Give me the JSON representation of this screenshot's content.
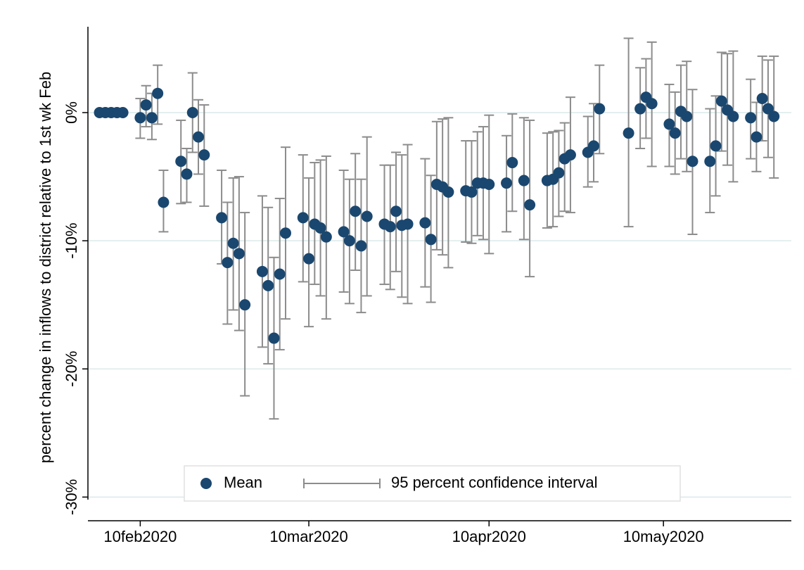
{
  "chart_data": {
    "type": "errorbar-scatter",
    "y_label": "percent change in inflows to district relative to 1st wk Feb",
    "x": [
      "2020-02-03",
      "2020-02-04",
      "2020-02-05",
      "2020-02-06",
      "2020-02-07",
      "2020-02-10",
      "2020-02-11",
      "2020-02-12",
      "2020-02-13",
      "2020-02-14",
      "2020-02-17",
      "2020-02-18",
      "2020-02-19",
      "2020-02-20",
      "2020-02-21",
      "2020-02-24",
      "2020-02-25",
      "2020-02-26",
      "2020-02-27",
      "2020-02-28",
      "2020-03-02",
      "2020-03-03",
      "2020-03-04",
      "2020-03-05",
      "2020-03-06",
      "2020-03-09",
      "2020-03-10",
      "2020-03-11",
      "2020-03-12",
      "2020-03-13",
      "2020-03-16",
      "2020-03-17",
      "2020-03-18",
      "2020-03-19",
      "2020-03-20",
      "2020-03-23",
      "2020-03-24",
      "2020-03-25",
      "2020-03-26",
      "2020-03-27",
      "2020-03-30",
      "2020-03-31",
      "2020-04-01",
      "2020-04-02",
      "2020-04-03",
      "2020-04-06",
      "2020-04-07",
      "2020-04-08",
      "2020-04-09",
      "2020-04-10",
      "2020-04-13",
      "2020-04-14",
      "2020-04-16",
      "2020-04-17",
      "2020-04-20",
      "2020-04-21",
      "2020-04-22",
      "2020-04-23",
      "2020-04-24",
      "2020-04-27",
      "2020-04-28",
      "2020-04-29",
      "2020-05-04",
      "2020-05-06",
      "2020-05-07",
      "2020-05-08",
      "2020-05-11",
      "2020-05-12",
      "2020-05-13",
      "2020-05-14",
      "2020-05-15",
      "2020-05-18",
      "2020-05-19",
      "2020-05-20",
      "2020-05-21",
      "2020-05-22",
      "2020-05-25",
      "2020-05-26",
      "2020-05-27",
      "2020-05-28",
      "2020-05-29"
    ],
    "series": [
      {
        "name": "Mean",
        "color": "#1a476f",
        "values": [
          0,
          0,
          0,
          0,
          0,
          -0.4,
          0.6,
          -0.4,
          1.5,
          -7.0,
          -3.8,
          -4.8,
          0.0,
          -1.9,
          -3.3,
          -8.2,
          -11.7,
          -10.2,
          -11.0,
          -15.0,
          -12.4,
          -13.5,
          -17.6,
          -12.6,
          -9.4,
          -8.2,
          -11.4,
          -8.7,
          -9.0,
          -9.7,
          -9.3,
          -10.0,
          -7.7,
          -10.4,
          -8.1,
          -8.7,
          -8.9,
          -7.7,
          -8.8,
          -8.7,
          -8.6,
          -9.9,
          -5.6,
          -5.8,
          -6.2,
          -6.1,
          -6.2,
          -5.5,
          -5.5,
          -5.6,
          -5.5,
          -3.9,
          -5.3,
          -7.2,
          -5.3,
          -5.2,
          -4.7,
          -3.6,
          -3.3,
          -3.1,
          -2.6,
          0.3,
          -1.6,
          0.3,
          1.2,
          0.7,
          -0.9,
          -1.6,
          0.1,
          -0.3,
          -3.8,
          -3.8,
          -2.6,
          0.9,
          0.2,
          -0.3,
          -0.4,
          -1.9,
          1.1,
          0.3,
          -0.3
        ]
      }
    ],
    "ci": {
      "name": "95 percent confidence interval",
      "color": "#8c8c8c",
      "high": [
        null,
        null,
        null,
        null,
        null,
        1.1,
        2.1,
        1.5,
        3.7,
        -4.5,
        -0.6,
        -2.8,
        3.1,
        1.0,
        0.6,
        -4.5,
        -7.0,
        -5.1,
        -5.0,
        -7.8,
        -6.5,
        -7.4,
        -11.3,
        -6.7,
        -2.7,
        -3.3,
        -5.1,
        -3.9,
        -3.7,
        -3.4,
        -4.5,
        -5.2,
        -3.2,
        -5.2,
        -1.9,
        -4.1,
        -4.1,
        -3.1,
        -3.3,
        -2.5,
        -3.6,
        -4.9,
        -0.7,
        -0.5,
        -0.4,
        -2.2,
        -2.2,
        -1.5,
        -1.1,
        -0.2,
        -1.8,
        -0.1,
        -0.4,
        -0.6,
        -1.6,
        -1.5,
        -1.4,
        -0.8,
        1.2,
        -0.3,
        0.7,
        3.7,
        5.8,
        3.5,
        4.2,
        5.5,
        2.2,
        1.6,
        3.7,
        4.0,
        1.8,
        0.3,
        1.3,
        4.7,
        4.6,
        4.8,
        2.6,
        0.8,
        4.4,
        4.1,
        4.4
      ],
      "low": [
        null,
        null,
        null,
        null,
        null,
        -2.0,
        -1.1,
        -2.1,
        -0.9,
        -9.3,
        -7.1,
        -7.0,
        -3.1,
        -4.8,
        -7.3,
        -11.8,
        -16.5,
        -15.4,
        -17.0,
        -22.1,
        -18.3,
        -19.6,
        -23.9,
        -18.5,
        -16.1,
        -13.2,
        -16.7,
        -13.4,
        -14.3,
        -16.1,
        -14.0,
        -14.9,
        -12.3,
        -15.6,
        -14.3,
        -13.4,
        -13.8,
        -12.4,
        -14.4,
        -14.9,
        -13.6,
        -14.8,
        -10.7,
        -11.1,
        -12.1,
        -10.1,
        -10.2,
        -9.6,
        -9.9,
        -11.0,
        -9.3,
        -7.7,
        -9.9,
        -12.8,
        -9.0,
        -8.9,
        -8.1,
        -7.7,
        -7.8,
        -5.8,
        -5.4,
        -3.2,
        -8.9,
        -2.8,
        -2.0,
        -4.2,
        -4.2,
        -4.8,
        -3.6,
        -4.6,
        -9.5,
        -7.8,
        -6.5,
        -3.0,
        -4.1,
        -5.4,
        -3.6,
        -4.6,
        -2.2,
        -3.5,
        -5.1
      ]
    },
    "xlim": [
      "2020-02-01",
      "2020-06-01"
    ],
    "xticks": [
      {
        "value": "2020-02-10",
        "label": "10feb2020"
      },
      {
        "value": "2020-03-10",
        "label": "10mar2020"
      },
      {
        "value": "2020-04-10",
        "label": "10apr2020"
      },
      {
        "value": "2020-05-10",
        "label": "10may2020"
      }
    ],
    "ylim": [
      -30.2,
      6.7
    ],
    "yticks": [
      {
        "value": -30,
        "label": "-30%"
      },
      {
        "value": -20,
        "label": "-20%"
      },
      {
        "value": -10,
        "label": "-10%"
      },
      {
        "value": 0,
        "label": "0%"
      }
    ],
    "grid": true,
    "legend": "bottom"
  }
}
